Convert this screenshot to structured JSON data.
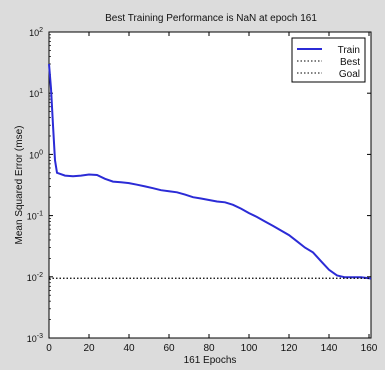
{
  "chart_data": {
    "type": "line",
    "title": "Best Training Performance is NaN at epoch 161",
    "xlabel": "161 Epochs",
    "ylabel": "Mean Squared Error  (mse)",
    "xlim": [
      0,
      161
    ],
    "ylim_exp": [
      -3,
      2
    ],
    "yscale": "log",
    "x_ticks": [
      "0",
      "20",
      "40",
      "60",
      "80",
      "100",
      "120",
      "140",
      "160"
    ],
    "x_tick_values": [
      0,
      20,
      40,
      60,
      80,
      100,
      120,
      140,
      160
    ],
    "y_tick_base": "10",
    "y_tick_exponents": [
      "2",
      "1",
      "0",
      "-1",
      "-2",
      "-3"
    ],
    "y_tick_exp_values": [
      2,
      1,
      0,
      -1,
      -2,
      -3
    ],
    "legend": {
      "position": "top-right",
      "entries": [
        "Train",
        "Best",
        "Goal"
      ]
    },
    "series": [
      {
        "name": "Train",
        "color": "#2b2bd6",
        "style": "solid",
        "x": [
          0,
          1,
          2,
          3,
          4,
          8,
          12,
          16,
          20,
          24,
          28,
          32,
          36,
          40,
          44,
          48,
          52,
          56,
          60,
          64,
          68,
          72,
          76,
          80,
          84,
          88,
          92,
          96,
          100,
          104,
          108,
          112,
          116,
          120,
          124,
          128,
          132,
          136,
          140,
          144,
          148,
          152,
          156,
          160,
          161
        ],
        "y": [
          30,
          12,
          3,
          0.8,
          0.5,
          0.45,
          0.44,
          0.45,
          0.47,
          0.46,
          0.4,
          0.36,
          0.35,
          0.34,
          0.32,
          0.3,
          0.28,
          0.26,
          0.25,
          0.24,
          0.22,
          0.2,
          0.19,
          0.18,
          0.17,
          0.165,
          0.15,
          0.13,
          0.11,
          0.095,
          0.08,
          0.068,
          0.057,
          0.048,
          0.038,
          0.03,
          0.025,
          0.018,
          0.013,
          0.0105,
          0.0098,
          0.0098,
          0.0098,
          0.0095,
          0.0093
        ]
      },
      {
        "name": "Best",
        "color": "#000000",
        "style": "dotted",
        "x": [
          0,
          161
        ],
        "y": [
          0.0095,
          0.0095
        ]
      },
      {
        "name": "Goal",
        "color": "#000000",
        "style": "dotted",
        "x": [
          0,
          161
        ],
        "y": [
          0.0095,
          0.0095
        ]
      }
    ],
    "grid": false
  }
}
